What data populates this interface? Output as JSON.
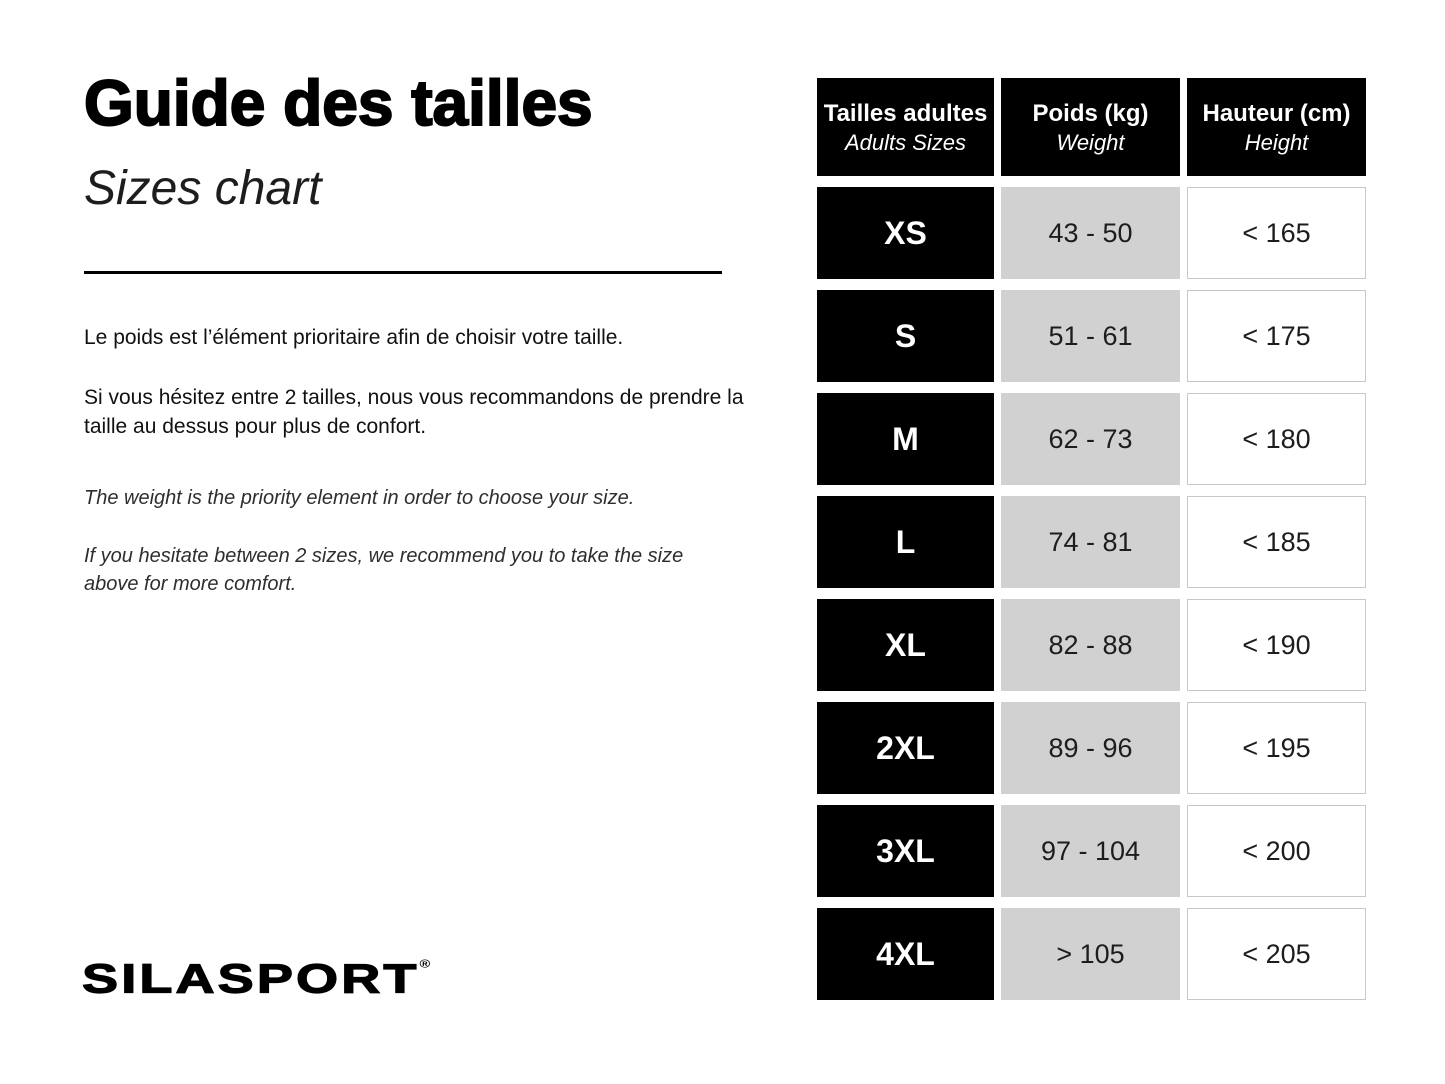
{
  "left": {
    "title_fr": "Guide des tailles",
    "title_en": "Sizes chart",
    "fr_paragraph_1": "Le poids est l’élément prioritaire afin de choisir votre taille.",
    "fr_paragraph_2": "Si vous hésitez entre 2 tailles, nous vous recommandons de prendre la taille au dessus pour plus de confort.",
    "en_paragraph_1": "The weight is the priority element in order to choose your size.",
    "en_paragraph_2": "If you hesitate between 2 sizes, we recommend you to take the size above for more comfort.",
    "logo_text": "SILASPORT",
    "logo_mark": "®"
  },
  "table": {
    "headers": [
      {
        "main": "Tailles adultes",
        "sub": "Adults Sizes"
      },
      {
        "main": "Poids (kg)",
        "sub": "Weight"
      },
      {
        "main": "Hauteur (cm)",
        "sub": "Height"
      }
    ],
    "rows": [
      {
        "size": "XS",
        "weight": "43 - 50",
        "height": "< 165"
      },
      {
        "size": "S",
        "weight": "51 - 61",
        "height": "< 175"
      },
      {
        "size": "M",
        "weight": "62 - 73",
        "height": "< 180"
      },
      {
        "size": "L",
        "weight": "74 - 81",
        "height": "< 185"
      },
      {
        "size": "XL",
        "weight": "82 - 88",
        "height": "< 190"
      },
      {
        "size": "2XL",
        "weight": "89 - 96",
        "height": "< 195"
      },
      {
        "size": "3XL",
        "weight": "97 - 104",
        "height": "< 200"
      },
      {
        "size": "4XL",
        "weight": "> 105",
        "height": "< 205"
      }
    ]
  },
  "colors": {
    "black": "#000000",
    "gray_cell": "#d1d1d1",
    "cell_border": "#c8c8c8",
    "text": "#1d1d1b"
  },
  "chart_data": {
    "type": "table",
    "title": "Guide des tailles / Sizes chart",
    "columns": [
      "Tailles adultes (Adults Sizes)",
      "Poids (kg) (Weight)",
      "Hauteur (cm) (Height)"
    ],
    "rows": [
      [
        "XS",
        "43 - 50",
        "< 165"
      ],
      [
        "S",
        "51 - 61",
        "< 175"
      ],
      [
        "M",
        "62 - 73",
        "< 180"
      ],
      [
        "L",
        "74 - 81",
        "< 185"
      ],
      [
        "XL",
        "82 - 88",
        "< 190"
      ],
      [
        "2XL",
        "89 - 96",
        "< 195"
      ],
      [
        "3XL",
        "97 - 104",
        "< 200"
      ],
      [
        "4XL",
        "> 105",
        "< 205"
      ]
    ],
    "notes": "Weight in kg is the priority criterion; height limits in cm per size"
  }
}
